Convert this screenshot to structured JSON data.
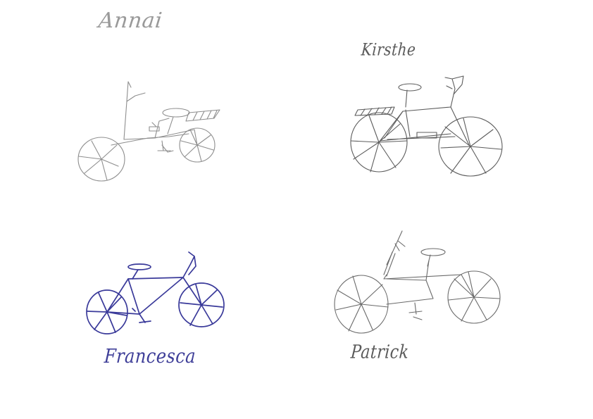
{
  "sketches": [
    {
      "label": "Annai",
      "ink_color": "#8e8e8e"
    },
    {
      "label": "Kirsthe",
      "ink_color": "#5c5c5c"
    },
    {
      "label": "Francesca",
      "ink_color": "#3a3a9a"
    },
    {
      "label": "Patrick",
      "ink_color": "#6a6a6a"
    }
  ]
}
